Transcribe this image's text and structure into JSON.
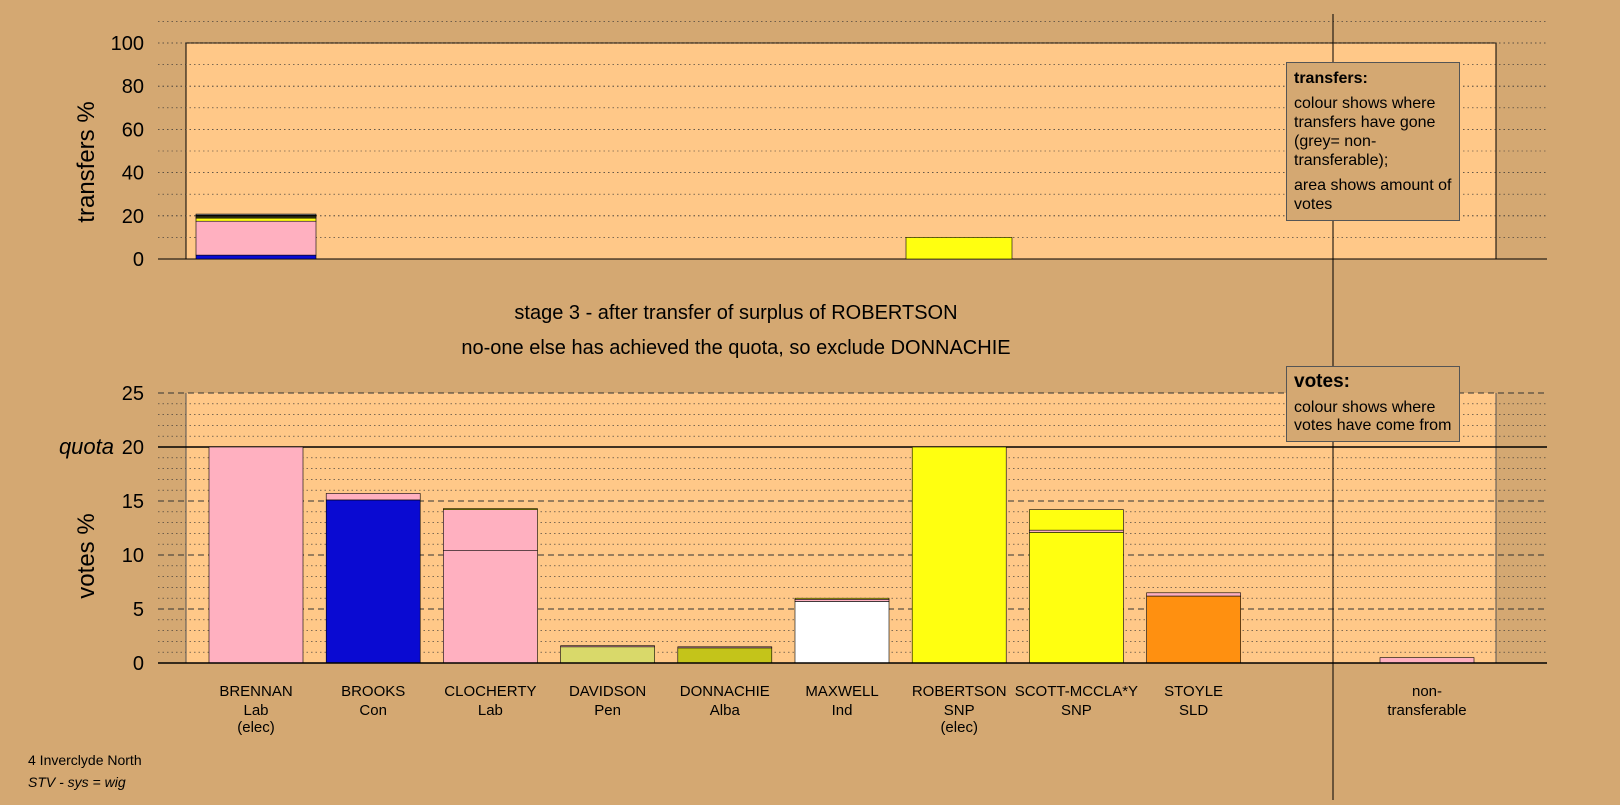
{
  "chart_data": [
    {
      "type": "bar",
      "stacked": true,
      "ylabel": "transfers %",
      "ylim": [
        0,
        100
      ],
      "ticks": [
        0,
        20,
        40,
        60,
        80,
        100
      ],
      "grid": "dotted",
      "legend": {
        "title": "transfers:",
        "lines": [
          "colour shows where transfers have gone (grey= non-transferable);",
          "area shows amount of votes"
        ]
      },
      "bars": [
        {
          "category": "BRENNAN",
          "segments": [
            {
              "value": 1.8,
              "color": "#0a0ad2"
            },
            {
              "value": 15.7,
              "color": "#ffb0c0"
            },
            {
              "value": 1.4,
              "color": "#ffff10"
            },
            {
              "value": 0.4,
              "color": "#d9d96a"
            },
            {
              "value": 0.4,
              "color": "#c4c41a"
            },
            {
              "value": 0.3,
              "color": "#ffffff"
            },
            {
              "value": 0.3,
              "color": "#ff9010"
            },
            {
              "value": 0.5,
              "color": "#b0b0b0"
            }
          ]
        },
        {
          "category": "ROBERTSON",
          "segments": [
            {
              "value": 10.0,
              "color": "#ffff10"
            }
          ]
        }
      ]
    },
    {
      "type": "bar",
      "stacked": true,
      "ylabel": "votes %",
      "ylim": [
        0,
        25
      ],
      "ticks": [
        0,
        5,
        10,
        15,
        20,
        25
      ],
      "quota": {
        "value": 20,
        "label": "quota"
      },
      "legend": {
        "title": "votes:",
        "lines": [
          "colour shows where votes have come from"
        ]
      },
      "bars": [
        {
          "name": "BRENNAN",
          "party": "Lab",
          "status": "(elec)",
          "segments": [
            {
              "value": 20.0,
              "color": "#ffb0c0"
            }
          ]
        },
        {
          "name": "BROOKS",
          "party": "Con",
          "status": "",
          "segments": [
            {
              "value": 15.1,
              "color": "#0a0ad2"
            },
            {
              "value": 0.6,
              "color": "#ffb0c0"
            }
          ]
        },
        {
          "name": "CLOCHERTY",
          "party": "Lab",
          "status": "",
          "segments": [
            {
              "value": 10.4,
              "color": "#ffb0c0"
            },
            {
              "value": 3.8,
              "color": "#ffb0c0"
            },
            {
              "value": 0.1,
              "color": "#ffff10"
            }
          ]
        },
        {
          "name": "DAVIDSON",
          "party": "Pen",
          "status": "",
          "segments": [
            {
              "value": 1.5,
              "color": "#d9d96a"
            },
            {
              "value": 0.1,
              "color": "#ffb0c0"
            }
          ]
        },
        {
          "name": "DONNACHIE",
          "party": "Alba",
          "status": "",
          "segments": [
            {
              "value": 1.4,
              "color": "#c4c41a"
            },
            {
              "value": 0.1,
              "color": "#ffb0c0"
            }
          ]
        },
        {
          "name": "MAXWELL",
          "party": "Ind",
          "status": "",
          "segments": [
            {
              "value": 5.7,
              "color": "#ffffff"
            },
            {
              "value": 0.2,
              "color": "#ffb0c0"
            },
            {
              "value": 0.1,
              "color": "#ffff10"
            }
          ]
        },
        {
          "name": "ROBERTSON",
          "party": "SNP",
          "status": "(elec)",
          "segments": [
            {
              "value": 20.0,
              "color": "#ffff10"
            }
          ]
        },
        {
          "name": "SCOTT-MCCLA*Y",
          "party": "SNP",
          "status": "",
          "segments": [
            {
              "value": 12.1,
              "color": "#ffff10"
            },
            {
              "value": 0.2,
              "color": "#ffb0c0"
            },
            {
              "value": 1.9,
              "color": "#ffff10"
            }
          ]
        },
        {
          "name": "STOYLE",
          "party": "SLD",
          "status": "",
          "segments": [
            {
              "value": 6.2,
              "color": "#ff9010"
            },
            {
              "value": 0.3,
              "color": "#ffb0c0"
            }
          ]
        }
      ],
      "nontransferable": {
        "label_lines": [
          "non-",
          "transferable"
        ],
        "segments": [
          {
            "value": 0.5,
            "color": "#ffb0c0"
          }
        ]
      }
    }
  ],
  "stage_title": "stage 3 - after transfer of surplus of ROBERTSON",
  "stage_subtitle": "no-one else has achieved the quota, so exclude DONNACHIE",
  "footer": {
    "ward": "4 Inverclyde North",
    "system": "STV - sys = wig"
  },
  "colors": {
    "background": "#d4a872",
    "plot_area": "#ffc888",
    "Lab": "#ffb0c0",
    "Con": "#0a0ad2",
    "SNP": "#ffff10",
    "SLD": "#ff9010",
    "Ind": "#ffffff",
    "Pen": "#d9d96a",
    "Alba": "#c4c41a",
    "non_transferable": "#b0b0b0"
  }
}
